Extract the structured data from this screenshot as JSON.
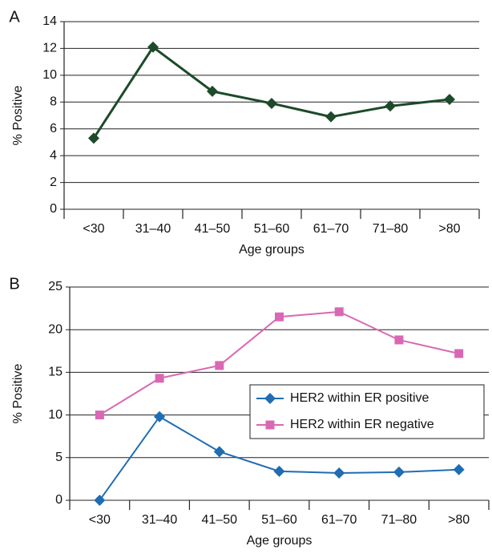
{
  "chart_data": [
    {
      "type": "line",
      "panel": "A",
      "y_label": "% Positive",
      "x_label": "Age groups",
      "categories": [
        "<30",
        "31–40",
        "41–50",
        "51–60",
        "61–70",
        "71–80",
        ">80"
      ],
      "values": [
        5.3,
        12.1,
        8.8,
        7.9,
        6.9,
        7.7,
        8.2
      ],
      "color": "#1c4a2a",
      "marker": "diamond",
      "ylim": [
        0,
        14
      ],
      "yticks": [
        0,
        2,
        4,
        6,
        8,
        10,
        12,
        14
      ],
      "grid": true
    },
    {
      "type": "line",
      "panel": "B",
      "y_label": "% Positive",
      "x_label": "Age groups",
      "categories": [
        "<30",
        "31–40",
        "41–50",
        "51–60",
        "61–70",
        "71–80",
        ">80"
      ],
      "series": [
        {
          "name": "HER2 within ER positive",
          "color": "#1f6db3",
          "marker": "diamond",
          "values": [
            0,
            9.8,
            5.7,
            3.4,
            3.2,
            3.3,
            3.6
          ]
        },
        {
          "name": "HER2 within ER negative",
          "color": "#d868b4",
          "marker": "square",
          "values": [
            10.0,
            14.3,
            15.8,
            21.5,
            22.1,
            18.8,
            17.2
          ]
        }
      ],
      "ylim": [
        0,
        25
      ],
      "yticks": [
        0,
        5,
        10,
        15,
        20,
        25
      ],
      "grid": true,
      "legend": "right"
    }
  ]
}
